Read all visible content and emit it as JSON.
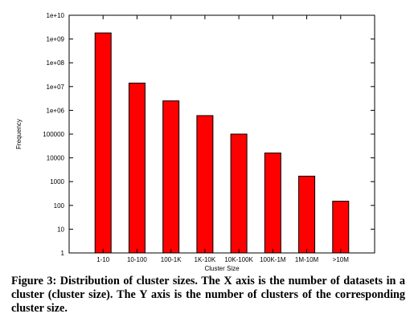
{
  "chart_data": {
    "type": "bar",
    "categories": [
      "1-10",
      "10-100",
      "100-1K",
      "1K-10K",
      "10K-100K",
      "100K-1M",
      "1M-10M",
      ">10M"
    ],
    "values": [
      1800000000,
      14000000,
      2500000,
      600000,
      100000,
      16000,
      1700,
      150
    ],
    "xlabel": "Cluster Size",
    "ylabel": "Frequency",
    "yscale": "log",
    "ylim": [
      1,
      10000000000
    ],
    "y_ticks": [
      1,
      10,
      100,
      1000,
      10000,
      100000,
      1000000,
      10000000,
      100000000,
      1000000000,
      10000000000
    ],
    "y_tick_labels": [
      "1",
      "10",
      "100",
      "1000",
      "10000",
      "100000",
      "1e+06",
      "1e+07",
      "1e+08",
      "1e+09",
      "1e+10"
    ],
    "bar_color": "#ff0000",
    "grid": false,
    "legend": false
  },
  "caption": "Figure 3: Distribution of cluster sizes. The X axis is the number of datasets in a cluster (cluster size). The Y axis is the number of clusters of the corresponding cluster size."
}
